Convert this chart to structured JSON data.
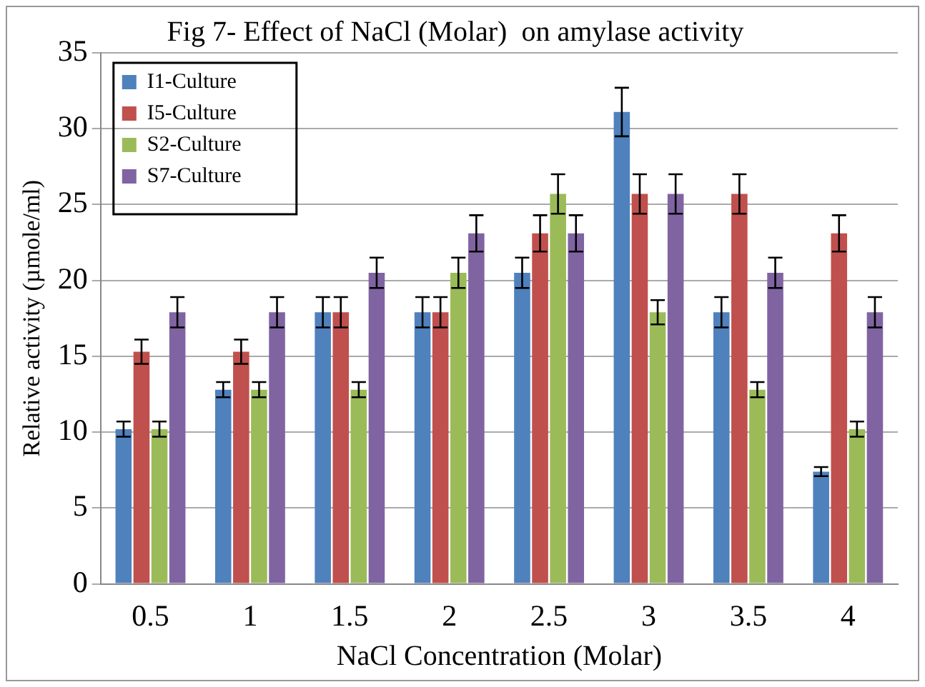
{
  "chart_data": {
    "type": "bar",
    "title": "Fig 7- Effect of NaCl (Molar)  on amylase activity",
    "xlabel": "NaCl Concentration (Molar)",
    "ylabel": "Relative activity (µmole/ml)",
    "categories": [
      "0.5",
      "1",
      "1.5",
      "2",
      "2.5",
      "3",
      "3.5",
      "4"
    ],
    "series": [
      {
        "name": "I1-Culture",
        "color": "#4f81bd",
        "values": [
          10.2,
          12.8,
          17.9,
          17.9,
          20.5,
          31.1,
          17.9,
          7.4
        ],
        "errors": [
          0.5,
          0.5,
          1,
          1,
          1,
          1.6,
          1,
          0.3
        ]
      },
      {
        "name": "I5-Culture",
        "color": "#c0504d",
        "values": [
          15.3,
          15.3,
          17.9,
          17.9,
          23.1,
          25.7,
          25.7,
          23.1
        ],
        "errors": [
          0.8,
          0.8,
          1,
          1,
          1.2,
          1.3,
          1.3,
          1.2
        ]
      },
      {
        "name": "S2-Culture",
        "color": "#9bbb59",
        "values": [
          10.2,
          12.8,
          12.8,
          20.5,
          25.7,
          17.9,
          12.8,
          10.2
        ],
        "errors": [
          0.5,
          0.5,
          0.5,
          1,
          1.3,
          0.8,
          0.5,
          0.5
        ]
      },
      {
        "name": "S7-Culture",
        "color": "#8064a2",
        "values": [
          17.9,
          17.9,
          20.5,
          23.1,
          23.1,
          25.7,
          20.5,
          17.9
        ],
        "errors": [
          1,
          1,
          1,
          1.2,
          1.2,
          1.3,
          1,
          1
        ]
      }
    ],
    "ylim": [
      0,
      35
    ],
    "yticks": [
      0,
      5,
      10,
      15,
      20,
      25,
      30,
      35
    ],
    "grid": "y",
    "legend": "top left"
  }
}
